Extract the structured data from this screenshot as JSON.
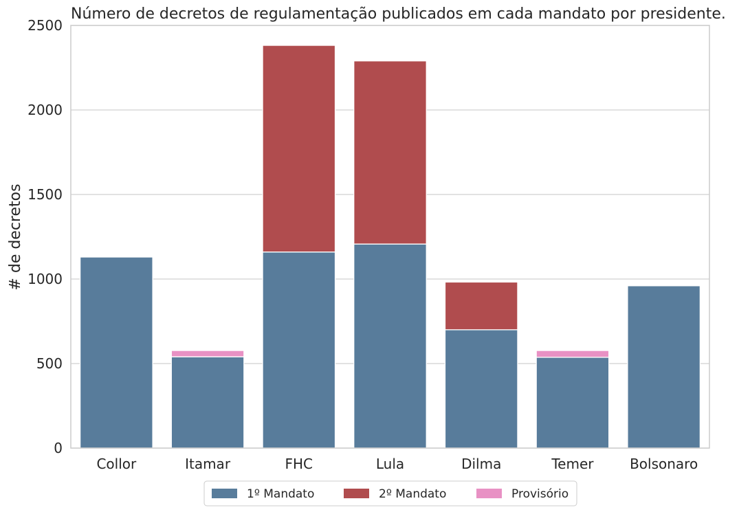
{
  "chart_data": {
    "type": "bar",
    "stacked": true,
    "title": "Número de decretos  de regulamentação publicados em cada mandato por presidente.",
    "xlabel": "",
    "ylabel": "# de decretos",
    "ylim": [
      0,
      2500
    ],
    "yticks": [
      0,
      500,
      1000,
      1500,
      2000,
      2500
    ],
    "grid": "horizontal",
    "legend_position": "bottom-center",
    "categories": [
      "Collor",
      "Itamar",
      "FHC",
      "Lula",
      "Dilma",
      "Temer",
      "Bolsonaro"
    ],
    "series": [
      {
        "name": "1º Mandato",
        "color": "#587c9b",
        "values": [
          1130,
          540,
          1160,
          1207,
          700,
          537,
          960
        ]
      },
      {
        "name": "2º Mandato",
        "color": "#b04c4e",
        "values": [
          0,
          0,
          1222,
          1083,
          282,
          0,
          0
        ]
      },
      {
        "name": "Provisório",
        "color": "#e891c4",
        "values": [
          0,
          37,
          0,
          0,
          0,
          40,
          0
        ]
      }
    ]
  }
}
